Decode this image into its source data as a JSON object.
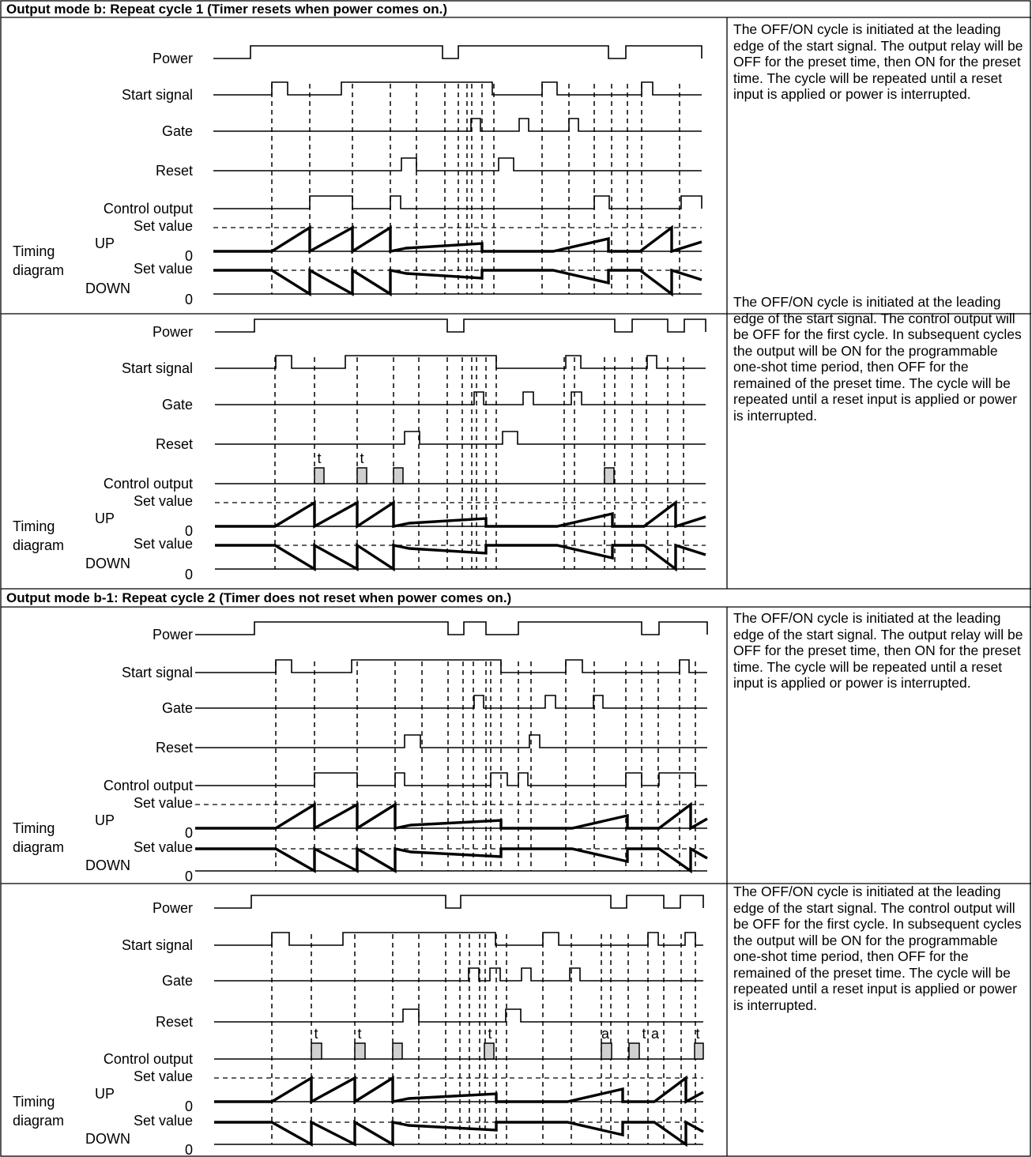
{
  "headers": [
    "Output mode b: Repeat cycle 1 (Timer resets when power comes on.)",
    "Output mode b-1: Repeat cycle 2 (Timer does not reset when power comes on.)"
  ],
  "labels": {
    "power": "Power",
    "start": "Start signal",
    "gate": "Gate",
    "reset": "Reset",
    "control": "Control output",
    "setvalue": "Set value",
    "up": "UP",
    "down": "DOWN",
    "zero": "0",
    "timing": "Timing",
    "diagram": "diagram"
  },
  "panels": [
    {
      "description": "The OFF/ON cycle is initiated at the leading edge of the start signal. The output relay will be OFF for the preset time, then ON for the preset time. The cycle will be repeated until a reset input is applied or power is interrupted.",
      "annotations": []
    },
    {
      "description": "The OFF/ON cycle is initiated at the leading edge of the start signal. The control output will be OFF for the first cycle. In subsequent cycles the output will be ON for the programmable one-shot time period, then OFF for the remained of the preset time. The cycle will be repeated until a reset input is applied or power is interrupted.",
      "annotations": [
        "t",
        "t"
      ]
    },
    {
      "description": "The OFF/ON cycle is initiated at the leading edge of the start signal. The output relay will be OFF for the preset time, then ON for the preset time. The cycle will be repeated until a reset input is applied or power is interrupted.",
      "annotations": []
    },
    {
      "description": "The OFF/ON cycle is initiated at the leading edge of the start signal. The control output will be OFF for the first cycle. In subsequent cycles the output will be ON for the programmable one-shot time period, then OFF for the remained of the preset time. The cycle will be repeated until a reset input is applied or power is interrupted.",
      "annotations": [
        "t",
        "t",
        "t",
        "a",
        "t",
        "a",
        "t"
      ]
    }
  ]
}
